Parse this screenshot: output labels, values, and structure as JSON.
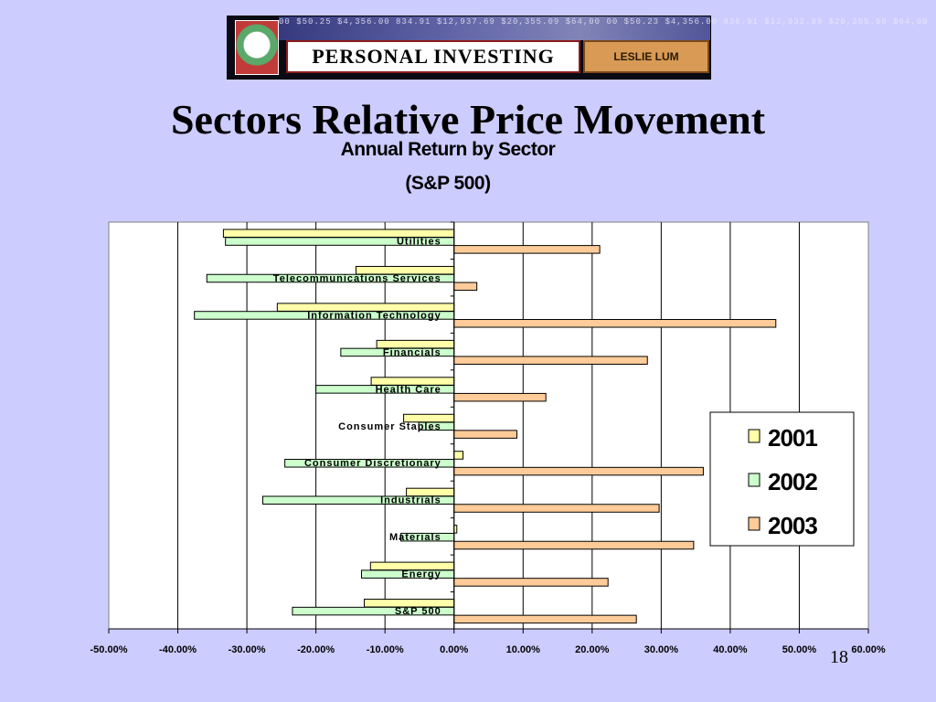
{
  "banner": {
    "ticker_text": "00 $50.25 $4,356.00 834.91 $12,937.69 $20,355.09 $64,00  00 $50.23 $4,356.00 836.91 $12,932.89 $20,355.09 $64,00",
    "app_name": "PERSONAL INVESTING",
    "author": "LESLIE LUM"
  },
  "slide": {
    "title": "Sectors Relative Price Movement",
    "page_number": "18"
  },
  "colors": {
    "background": "#ccccff",
    "series_2001": "#ffffaa",
    "series_2002": "#ccffcc",
    "series_2003": "#ffcc99"
  },
  "chart_data": {
    "type": "bar",
    "orientation": "horizontal",
    "title": "Annual Return by Sector",
    "subtitle": "(S&P 500)",
    "categories": [
      "Utilities",
      "Telecommunications Services",
      "Information Technology",
      "Financials",
      "Health Care",
      "Consumer Staples",
      "Consumer Discretionary",
      "Industrials",
      "Materials",
      "Energy",
      "S&P 500"
    ],
    "series": [
      {
        "name": "2001",
        "values": [
          -33.4,
          -14.2,
          -25.6,
          -11.2,
          -12.0,
          -7.3,
          1.3,
          -6.9,
          0.4,
          -12.1,
          -13.0
        ]
      },
      {
        "name": "2002",
        "values": [
          -33.1,
          -35.8,
          -37.6,
          -16.4,
          -20.0,
          -5.1,
          -24.5,
          -27.7,
          -7.7,
          -13.4,
          -23.4
        ]
      },
      {
        "name": "2003",
        "values": [
          21.1,
          3.3,
          46.6,
          28.0,
          13.3,
          9.1,
          36.1,
          29.7,
          34.7,
          22.3,
          26.4
        ]
      }
    ],
    "xlim": [
      -50,
      60
    ],
    "x_ticks": [
      "-50.00%",
      "-40.00%",
      "-30.00%",
      "-20.00%",
      "-10.00%",
      "0.00%",
      "10.00%",
      "20.00%",
      "30.00%",
      "40.00%",
      "50.00%",
      "60.00%"
    ],
    "grid": "vertical",
    "legend_position": "right"
  }
}
